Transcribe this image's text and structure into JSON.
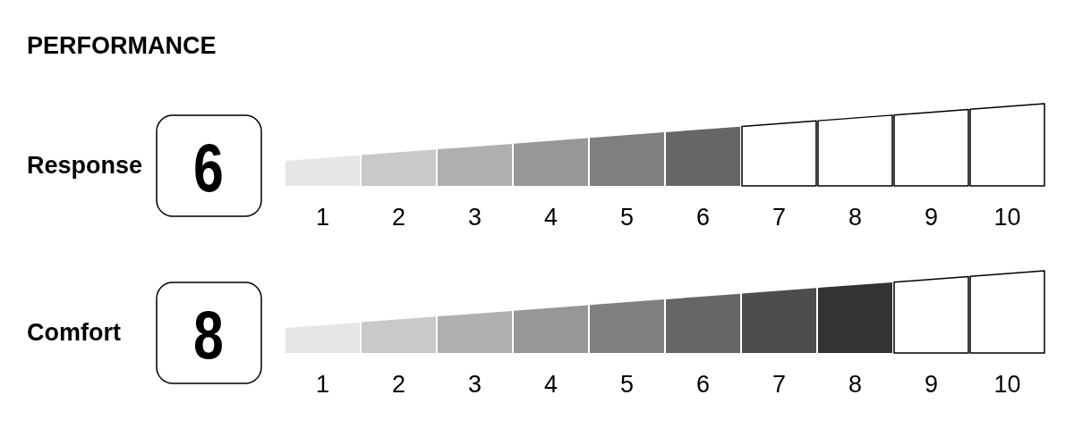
{
  "chart_data": [
    {
      "type": "bar",
      "title": "PERFORMANCE",
      "orientation": "horizontal",
      "stacked": true,
      "categories": [
        "Response"
      ],
      "annotations": [
        "6"
      ],
      "xlim": [
        0,
        10
      ],
      "xticks": [
        {
          "value": 0.5,
          "label": "1"
        },
        {
          "value": 1.5,
          "label": "2"
        },
        {
          "value": 2.5,
          "label": "3"
        },
        {
          "value": 3.5,
          "label": "4"
        },
        {
          "value": 4.5,
          "label": "5"
        },
        {
          "value": 5.5,
          "label": "6"
        },
        {
          "value": 6.5,
          "label": "7"
        },
        {
          "value": 7.5,
          "label": "8"
        },
        {
          "value": 8.5,
          "label": "9"
        },
        {
          "value": 9.5,
          "label": "10"
        }
      ],
      "series": [
        {
          "color": "#e6e6e6",
          "values": [
            1
          ]
        },
        {
          "color": "#c9c9c9",
          "values": [
            1
          ]
        },
        {
          "color": "#b0b0b0",
          "values": [
            1
          ]
        },
        {
          "color": "#979797",
          "values": [
            1
          ]
        },
        {
          "color": "#7f7f7f",
          "values": [
            1
          ]
        },
        {
          "color": "#666666",
          "values": [
            1
          ]
        },
        {
          "color": "#ffffff",
          "values": [
            1
          ]
        },
        {
          "color": "#ffffff",
          "values": [
            1
          ]
        },
        {
          "color": "#ffffff",
          "values": [
            1
          ]
        },
        {
          "color": "#ffffff",
          "values": [
            1
          ]
        }
      ]
    },
    {
      "type": "bar",
      "orientation": "horizontal",
      "stacked": true,
      "categories": [
        "Comfort"
      ],
      "annotations": [
        "8"
      ],
      "xlim": [
        0,
        10
      ],
      "xticks": [
        {
          "value": 0.5,
          "label": "1"
        },
        {
          "value": 1.5,
          "label": "2"
        },
        {
          "value": 2.5,
          "label": "3"
        },
        {
          "value": 3.5,
          "label": "4"
        },
        {
          "value": 4.5,
          "label": "5"
        },
        {
          "value": 5.5,
          "label": "6"
        },
        {
          "value": 6.5,
          "label": "7"
        },
        {
          "value": 7.5,
          "label": "8"
        },
        {
          "value": 8.5,
          "label": "9"
        },
        {
          "value": 9.5,
          "label": "10"
        }
      ],
      "series": [
        {
          "color": "#e6e6e6",
          "values": [
            1
          ]
        },
        {
          "color": "#c9c9c9",
          "values": [
            1
          ]
        },
        {
          "color": "#b0b0b0",
          "values": [
            1
          ]
        },
        {
          "color": "#979797",
          "values": [
            1
          ]
        },
        {
          "color": "#7f7f7f",
          "values": [
            1
          ]
        },
        {
          "color": "#666666",
          "values": [
            1
          ]
        },
        {
          "color": "#4d4d4d",
          "values": [
            1
          ]
        },
        {
          "color": "#333333",
          "values": [
            1
          ]
        },
        {
          "color": "#ffffff",
          "values": [
            1
          ]
        },
        {
          "color": "#ffffff",
          "values": [
            1
          ]
        }
      ]
    }
  ]
}
